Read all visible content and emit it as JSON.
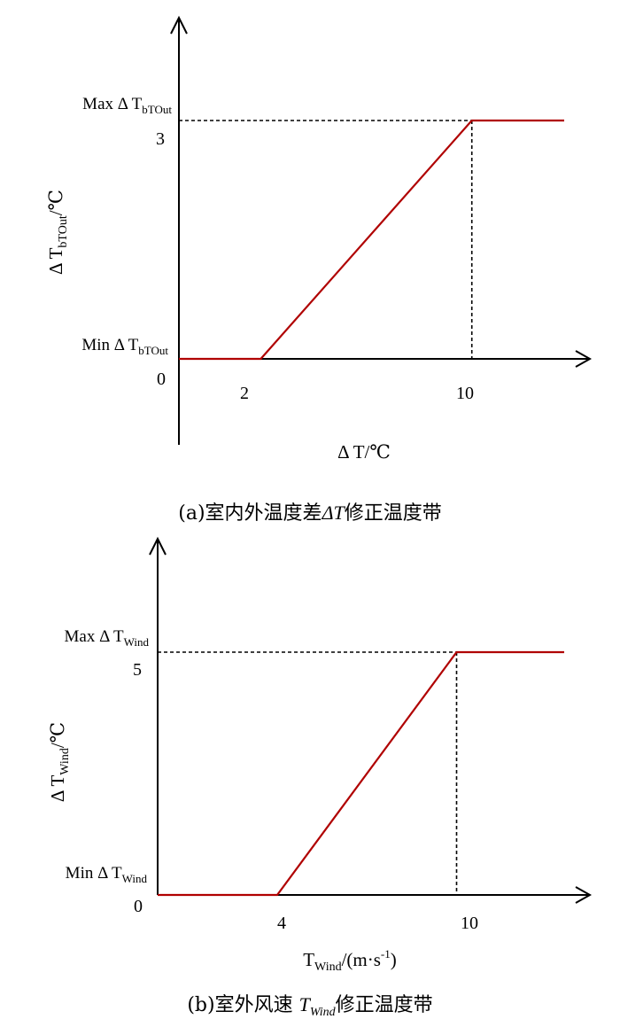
{
  "chart_data": [
    {
      "type": "line",
      "series_color": "#b00000",
      "x_range": [
        -1.1,
        13.5
      ],
      "y_range": [
        -1.0,
        4.5
      ],
      "x": [
        -1.1,
        2,
        10,
        13.5
      ],
      "y": [
        0,
        0,
        3,
        3
      ],
      "x_ticks": [
        {
          "value": 2,
          "label": "2"
        },
        {
          "value": 10,
          "label": "10"
        }
      ],
      "y_ticks": [
        {
          "value": 0,
          "label": "0"
        },
        {
          "value": 3,
          "label": "3"
        }
      ],
      "max_label": {
        "main": "Max Δ T",
        "sub": "bTOut"
      },
      "min_label": {
        "main": "Min Δ T",
        "sub": "bTOut"
      },
      "ylabel": {
        "main": "Δ T",
        "sub": "bTOut",
        "unit": "/℃"
      },
      "xlabel": "Δ T/℃",
      "caption": {
        "pre": "(a)室内外温度差",
        "sym": "ΔT",
        "sub": "",
        "post": "修正温度带"
      }
    },
    {
      "type": "line",
      "series_color": "#b00000",
      "x_range": [
        0,
        13.6
      ],
      "y_range": [
        0,
        7.8
      ],
      "x": [
        0,
        4,
        10,
        13.6
      ],
      "y": [
        0,
        0,
        5,
        5
      ],
      "x_ticks": [
        {
          "value": 4,
          "label": "4"
        },
        {
          "value": 10,
          "label": "10"
        }
      ],
      "y_ticks": [
        {
          "value": 0,
          "label": "0"
        },
        {
          "value": 5,
          "label": "5"
        }
      ],
      "max_label": {
        "main": "Max Δ T",
        "sub": "Wind"
      },
      "min_label": {
        "main": "Min Δ T",
        "sub": "Wind"
      },
      "ylabel": {
        "main": "Δ T",
        "sub": "Wind",
        "unit": "/℃"
      },
      "xlabel": {
        "main": "T",
        "sub": "Wind",
        "unit_pre": "/(m·s",
        "unit_sup": "-1",
        "unit_post": ")"
      },
      "caption": {
        "pre": "(b)室外风速 ",
        "sym": "T",
        "sub": "Wind",
        "post": "修正温度带"
      }
    }
  ]
}
